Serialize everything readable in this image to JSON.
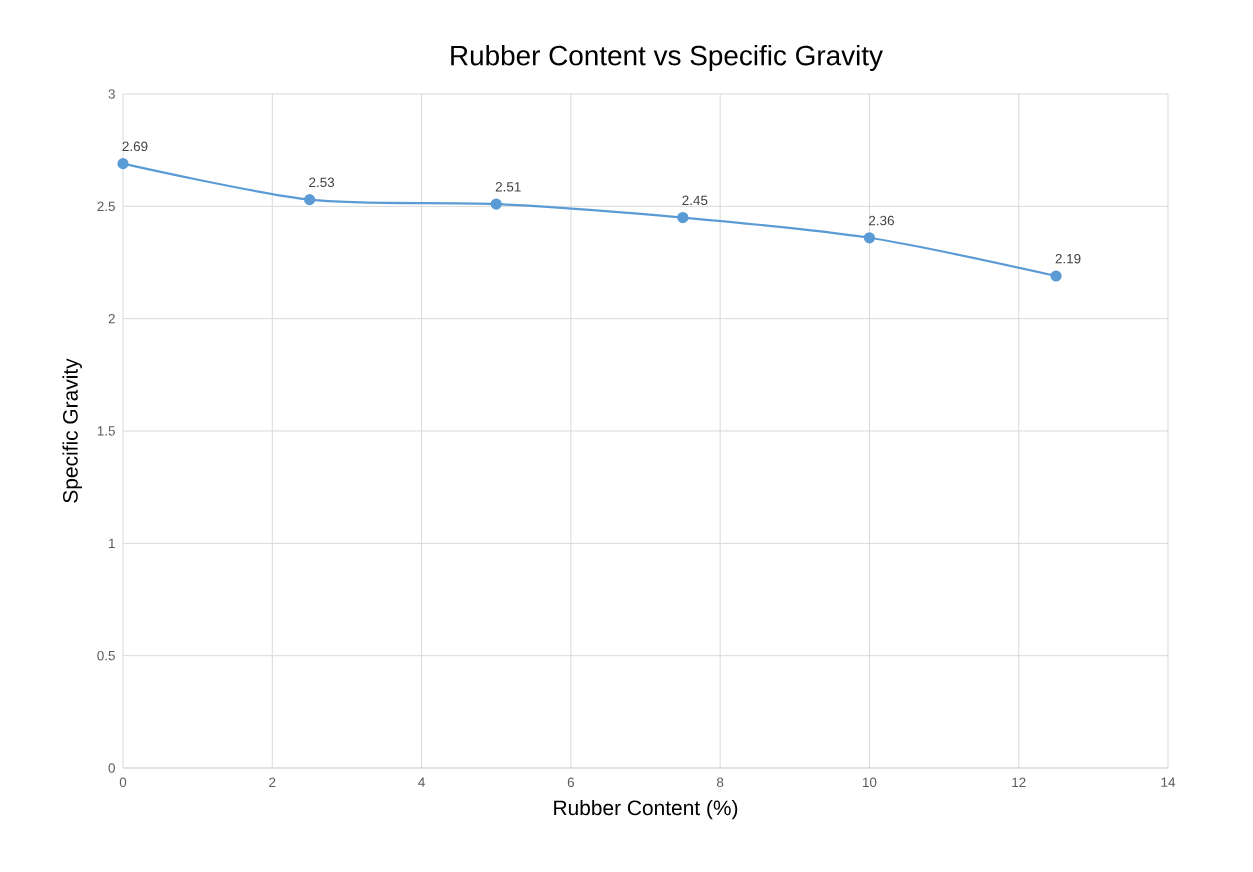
{
  "chart_data": {
    "type": "line",
    "title": "Rubber Content vs Specific Gravity",
    "xlabel": "Rubber Content (%)",
    "ylabel": "Specific Gravity",
    "x": [
      0,
      2.5,
      5,
      7.5,
      10,
      12.5
    ],
    "series": [
      {
        "color": "#5b9bd5",
        "values": [
          2.69,
          2.53,
          2.51,
          2.45,
          2.36,
          2.19
        ]
      }
    ],
    "xlim": [
      0,
      14
    ],
    "xticks": [
      0,
      2,
      4,
      6,
      8,
      10,
      12,
      14
    ],
    "ylim": [
      0,
      3
    ],
    "yticks": [
      0,
      0.5,
      1,
      1.5,
      2,
      2.5,
      3
    ],
    "grid": true,
    "marker": "circle",
    "line_style": "solid",
    "data_labels": true,
    "legend": false
  }
}
